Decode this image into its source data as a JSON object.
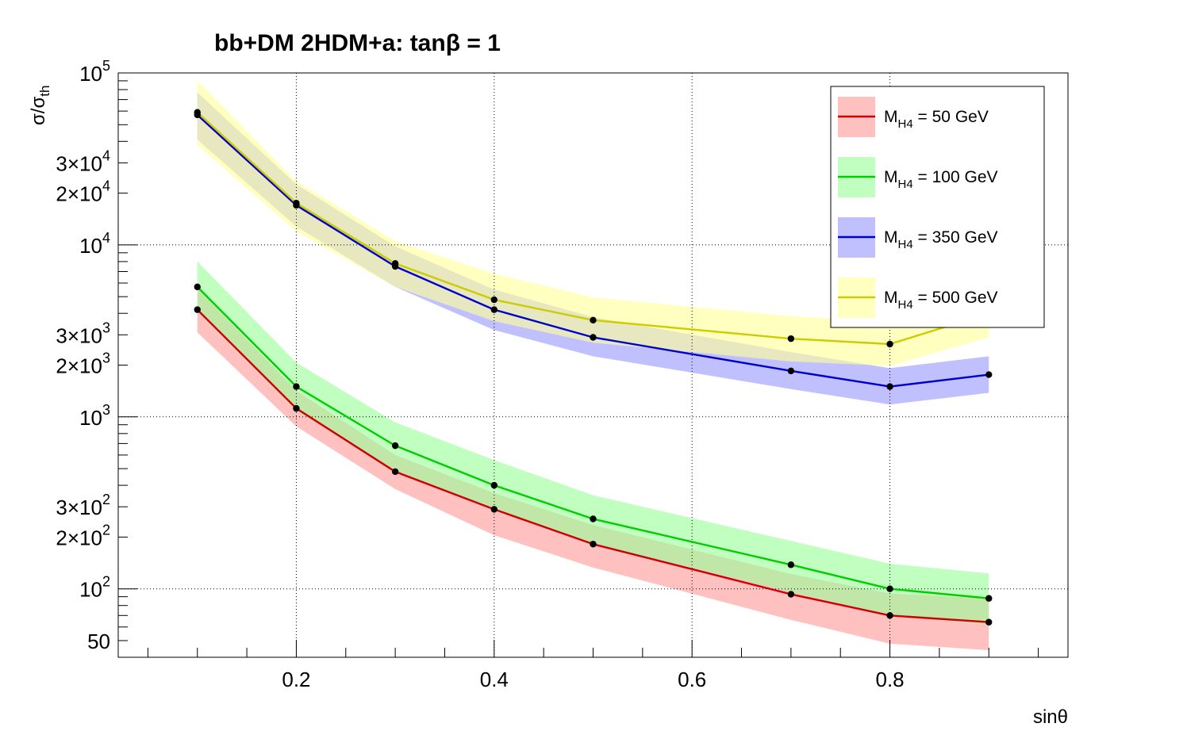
{
  "chart_data": {
    "type": "line",
    "title": "bb+DM 2HDM+a: tanβ = 1",
    "xlabel": "sinθ",
    "ylabel": "σ/σth",
    "ylabel_parts": {
      "main": "σ/σ",
      "sub": "th"
    },
    "xlim": [
      0.02,
      0.98
    ],
    "ylim": [
      40,
      100000
    ],
    "yscale": "log",
    "grid": true,
    "legend_position": "top-right",
    "x_ticks": [
      {
        "value": 0.2,
        "label": "0.2"
      },
      {
        "value": 0.4,
        "label": "0.4"
      },
      {
        "value": 0.6,
        "label": "0.6"
      },
      {
        "value": 0.8,
        "label": "0.8"
      }
    ],
    "y_ticks": [
      {
        "value": 100000,
        "base": "10",
        "exp": "5"
      },
      {
        "value": 30000,
        "base": "3×10",
        "exp": "4"
      },
      {
        "value": 20000,
        "base": "2×10",
        "exp": "4"
      },
      {
        "value": 10000,
        "base": "10",
        "exp": "4"
      },
      {
        "value": 3000,
        "base": "3×10",
        "exp": "3"
      },
      {
        "value": 2000,
        "base": "2×10",
        "exp": "3"
      },
      {
        "value": 1000,
        "base": "10",
        "exp": "3"
      },
      {
        "value": 300,
        "base": "3×10",
        "exp": "2"
      },
      {
        "value": 200,
        "base": "2×10",
        "exp": "2"
      },
      {
        "value": 100,
        "base": "10",
        "exp": "2"
      },
      {
        "value": 50,
        "base": "50",
        "exp": ""
      }
    ],
    "x": [
      0.1,
      0.2,
      0.3,
      0.4,
      0.5,
      0.7,
      0.8,
      0.9
    ],
    "series": [
      {
        "name": "M_H4 = 50 GeV",
        "legend_main": "M",
        "legend_sub": "H4",
        "legend_rest": " = 50 GeV",
        "line_color": "#cc0000",
        "band_color": "#ff9999",
        "values": [
          4200,
          1120,
          480,
          290,
          182,
          93,
          70,
          64
        ],
        "band_low": [
          3100,
          880,
          380,
          205,
          133,
          66,
          48,
          44
        ],
        "band_high": [
          5600,
          1420,
          600,
          360,
          235,
          122,
          94,
          88
        ]
      },
      {
        "name": "M_H4 = 100 GeV",
        "legend_main": "M",
        "legend_sub": "H4",
        "legend_rest": " = 100 GeV",
        "line_color": "#00cc00",
        "band_color": "#99ff99",
        "values": [
          5700,
          1500,
          680,
          400,
          255,
          138,
          100,
          88
        ],
        "band_low": [
          4100,
          1090,
          490,
          285,
          183,
          96,
          70,
          62
        ],
        "band_high": [
          8000,
          2070,
          930,
          560,
          350,
          190,
          140,
          123
        ]
      },
      {
        "name": "M_H4 = 350 GeV",
        "legend_main": "M",
        "legend_sub": "H4",
        "legend_rest": " = 350 GeV",
        "line_color": "#0000cc",
        "band_color": "#9999ff",
        "values": [
          57000,
          17000,
          7500,
          4200,
          2900,
          1850,
          1500,
          1760
        ],
        "band_low": [
          41000,
          12800,
          5700,
          3200,
          2250,
          1450,
          1180,
          1380
        ],
        "band_high": [
          77000,
          22500,
          9800,
          5500,
          3800,
          2380,
          1920,
          2250
        ]
      },
      {
        "name": "M_H4 = 500 GeV",
        "legend_main": "M",
        "legend_sub": "H4",
        "legend_rest": " = 500 GeV",
        "line_color": "#cccc00",
        "band_color": "#ffff99",
        "values": [
          59000,
          17500,
          7800,
          4800,
          3650,
          2850,
          2650,
          4000
        ],
        "band_low": [
          38000,
          12000,
          5700,
          3600,
          2700,
          2100,
          1980,
          2900
        ],
        "band_high": [
          90000,
          23500,
          10500,
          6800,
          4950,
          3850,
          3600,
          5400
        ]
      }
    ]
  }
}
